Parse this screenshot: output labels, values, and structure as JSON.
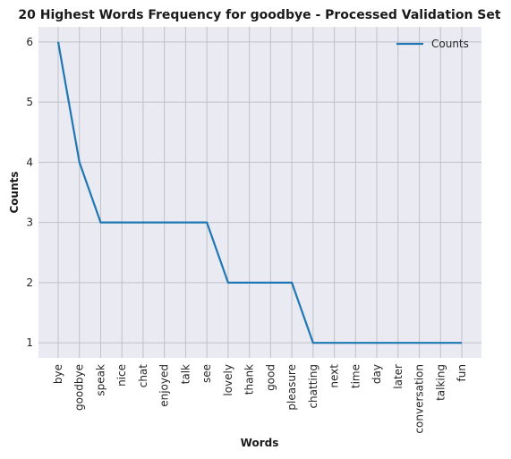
{
  "chart_data": {
    "type": "line",
    "title": "20 Highest Words Frequency for goodbye - Processed Validation Set",
    "xlabel": "Words",
    "ylabel": "Counts",
    "categories": [
      "bye",
      "goodbye",
      "speak",
      "nice",
      "chat",
      "enjoyed",
      "talk",
      "see",
      "lovely",
      "thank",
      "good",
      "pleasure",
      "chatting",
      "next",
      "time",
      "day",
      "later",
      "conversation",
      "talking",
      "fun"
    ],
    "series": [
      {
        "name": "Counts",
        "values": [
          6,
          4,
          3,
          3,
          3,
          3,
          3,
          3,
          2,
          2,
          2,
          2,
          1,
          1,
          1,
          1,
          1,
          1,
          1,
          1
        ]
      }
    ],
    "yticks": [
      1,
      2,
      3,
      4,
      5,
      6
    ],
    "ylim": [
      0.75,
      6.25
    ],
    "grid": true,
    "legend": "top-right",
    "colors": {
      "line": "#1f77b4",
      "plot_bg": "#eaeaf2",
      "grid": "#c0c0c8"
    }
  }
}
